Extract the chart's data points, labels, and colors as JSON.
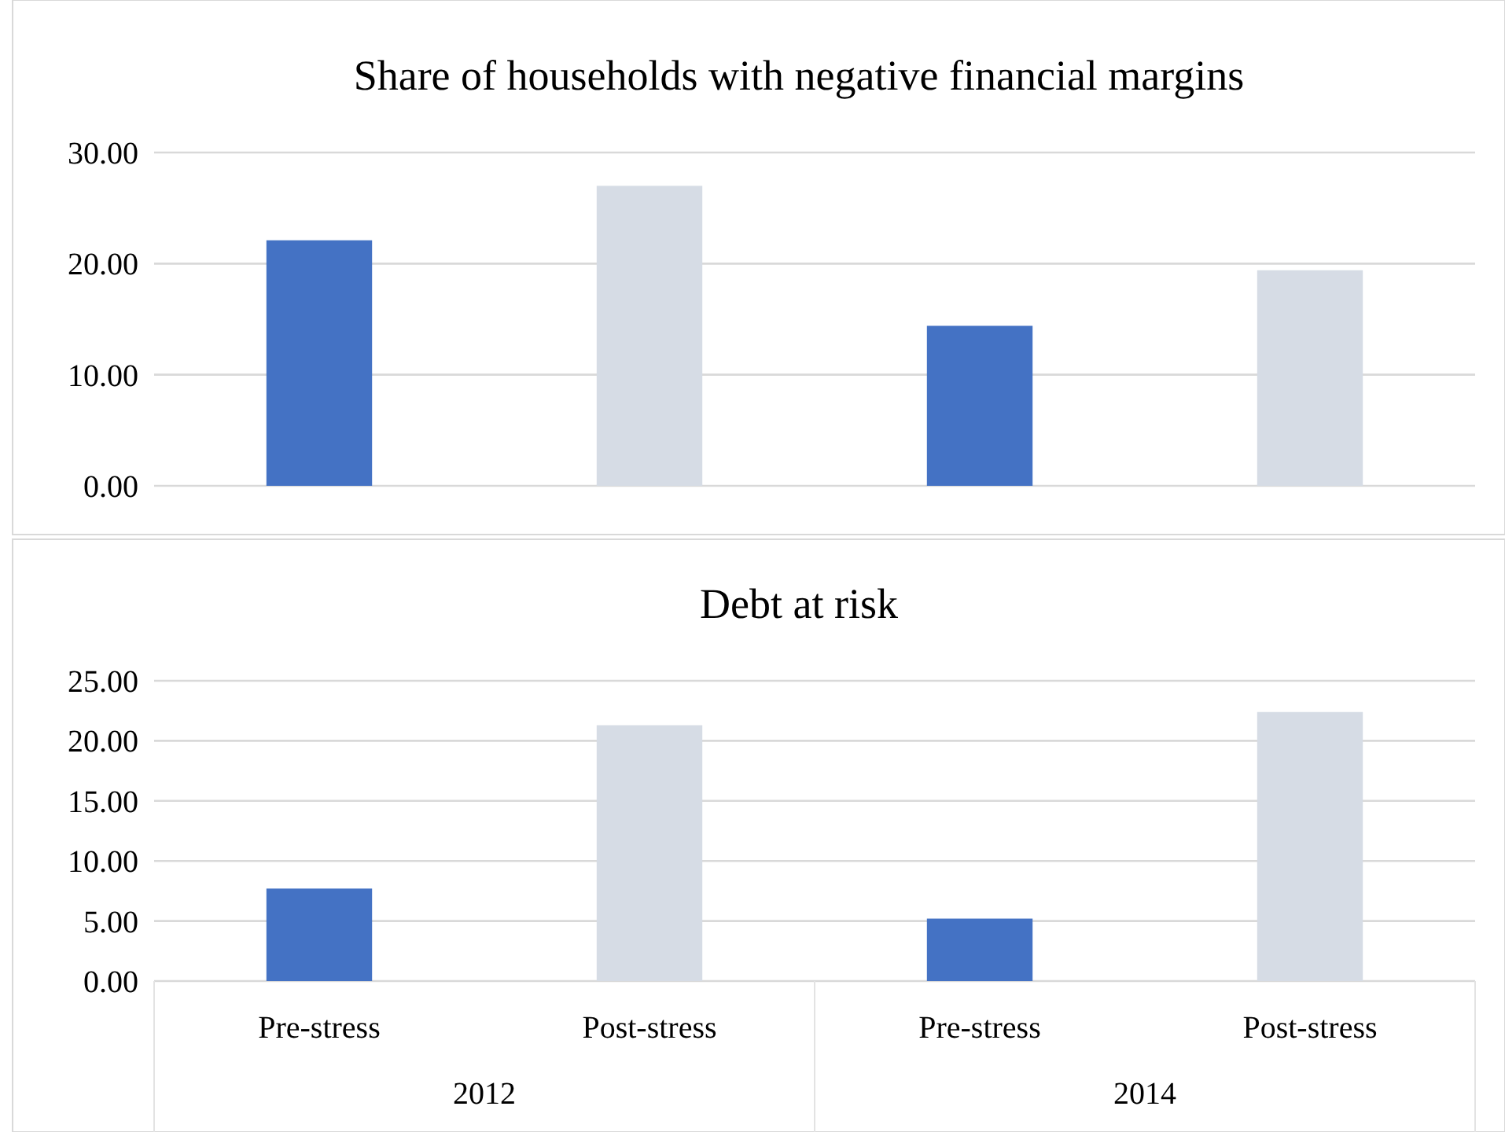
{
  "chart_data": [
    {
      "type": "bar",
      "title": "Share of households with negative financial margins",
      "categories": [
        null,
        null,
        null,
        null
      ],
      "values": [
        22.1,
        27.0,
        14.4,
        19.4
      ],
      "colors": [
        "#4472c4",
        "#d6dce5",
        "#4472c4",
        "#d6dce5"
      ],
      "ylim": [
        0,
        30
      ],
      "yticks": [
        {
          "value": 0,
          "label": "0.00"
        },
        {
          "value": 10,
          "label": "10.00"
        },
        {
          "value": 20,
          "label": "20.00"
        },
        {
          "value": 30,
          "label": "30.00"
        }
      ],
      "grid": "y",
      "tick_labels": "y"
    },
    {
      "type": "bar",
      "title": "Debt at risk",
      "categories": [
        "Pre-stress",
        "Post-stress",
        "Pre-stress",
        "Post-stress"
      ],
      "values": [
        7.7,
        21.3,
        5.2,
        22.4
      ],
      "colors": [
        "#4472c4",
        "#d6dce5",
        "#4472c4",
        "#d6dce5"
      ],
      "ylim": [
        0,
        25
      ],
      "yticks": [
        {
          "value": 0,
          "label": "0.00"
        },
        {
          "value": 5,
          "label": "5.00"
        },
        {
          "value": 10,
          "label": "10.00"
        },
        {
          "value": 15,
          "label": "15.00"
        },
        {
          "value": 20,
          "label": "20.00"
        },
        {
          "value": 25,
          "label": "25.00"
        }
      ],
      "grid": "y",
      "annotations": [
        "2012",
        "2014"
      ]
    }
  ]
}
